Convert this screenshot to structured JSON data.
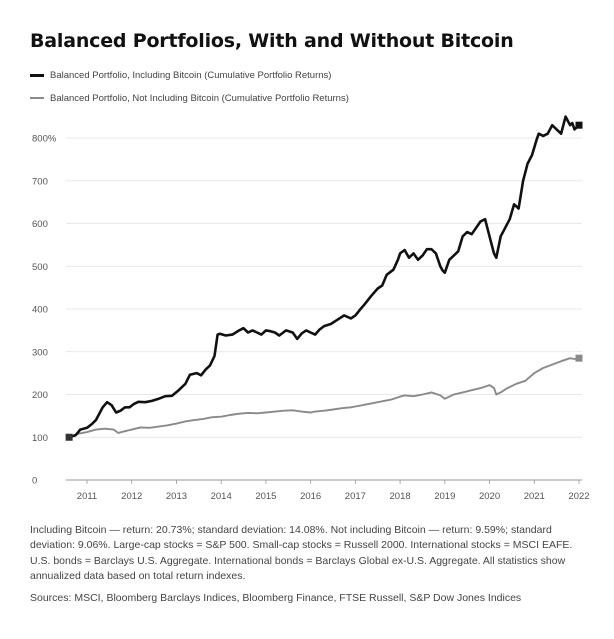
{
  "chart_data": {
    "type": "line",
    "title": "Balanced Portfolios, With and Without Bitcoin",
    "xlabel": "",
    "ylabel": "",
    "x_range": [
      2010.5,
      2022.0
    ],
    "ylim": [
      0,
      850
    ],
    "y_ticks": [
      0,
      100,
      200,
      300,
      400,
      500,
      600,
      700,
      800
    ],
    "y_tick_labels": [
      "0",
      "100",
      "200",
      "300",
      "400",
      "500",
      "600",
      "700",
      "800%"
    ],
    "x_ticks": [
      2011,
      2012,
      2013,
      2014,
      2015,
      2016,
      2017,
      2018,
      2019,
      2020,
      2021,
      2022
    ],
    "x_tick_labels": [
      "2011",
      "2012",
      "2013",
      "2014",
      "2015",
      "2016",
      "2017",
      "2018",
      "2019",
      "2020",
      "2021",
      "2022"
    ],
    "grid": "horizontal",
    "legend_position": "top-left",
    "series": [
      {
        "name": "Balanced Portfolio, Including Bitcoin (Cumulative Portfolio Returns)",
        "color": "#111111",
        "x": [
          2010.6,
          2010.75,
          2010.85,
          2011.0,
          2011.1,
          2011.2,
          2011.35,
          2011.45,
          2011.55,
          2011.65,
          2011.75,
          2011.85,
          2011.95,
          2012.05,
          2012.15,
          2012.3,
          2012.45,
          2012.6,
          2012.75,
          2012.9,
          2013.05,
          2013.2,
          2013.3,
          2013.45,
          2013.55,
          2013.65,
          2013.75,
          2013.85,
          2013.92,
          2013.97,
          2014.1,
          2014.25,
          2014.4,
          2014.5,
          2014.6,
          2014.7,
          2014.8,
          2014.9,
          2015.0,
          2015.1,
          2015.2,
          2015.3,
          2015.45,
          2015.6,
          2015.7,
          2015.8,
          2015.9,
          2016.0,
          2016.1,
          2016.2,
          2016.3,
          2016.45,
          2016.6,
          2016.75,
          2016.9,
          2017.0,
          2017.1,
          2017.2,
          2017.35,
          2017.5,
          2017.6,
          2017.7,
          2017.85,
          2017.95,
          2018.0,
          2018.1,
          2018.2,
          2018.3,
          2018.4,
          2018.5,
          2018.6,
          2018.7,
          2018.8,
          2018.9,
          2018.95,
          2019.0,
          2019.1,
          2019.2,
          2019.3,
          2019.4,
          2019.5,
          2019.6,
          2019.7,
          2019.8,
          2019.9,
          2020.0,
          2020.1,
          2020.15,
          2020.25,
          2020.35,
          2020.45,
          2020.55,
          2020.65,
          2020.75,
          2020.85,
          2020.95,
          2021.05,
          2021.1,
          2021.2,
          2021.3,
          2021.4,
          2021.5,
          2021.6,
          2021.7,
          2021.8,
          2021.85,
          2021.9,
          2022.0
        ],
        "values": [
          100,
          105,
          118,
          122,
          130,
          140,
          170,
          182,
          175,
          158,
          162,
          170,
          170,
          178,
          183,
          182,
          185,
          190,
          196,
          197,
          210,
          225,
          246,
          250,
          245,
          258,
          268,
          290,
          340,
          342,
          338,
          340,
          350,
          355,
          345,
          350,
          345,
          340,
          350,
          348,
          345,
          338,
          350,
          345,
          330,
          343,
          350,
          345,
          340,
          352,
          360,
          365,
          375,
          385,
          378,
          385,
          398,
          410,
          430,
          448,
          455,
          480,
          492,
          515,
          530,
          538,
          520,
          530,
          515,
          525,
          540,
          540,
          530,
          500,
          490,
          485,
          515,
          525,
          535,
          570,
          580,
          575,
          590,
          605,
          610,
          570,
          530,
          520,
          570,
          590,
          610,
          645,
          635,
          700,
          740,
          760,
          795,
          810,
          805,
          810,
          830,
          820,
          810,
          850,
          830,
          835,
          820,
          830
        ]
      },
      {
        "name": "Balanced Portfolio, Not Including Bitcoin (Cumulative Portfolio Returns)",
        "color": "#8a8a8a",
        "x": [
          2010.6,
          2010.8,
          2011.0,
          2011.2,
          2011.4,
          2011.6,
          2011.7,
          2011.8,
          2012.0,
          2012.2,
          2012.4,
          2012.6,
          2012.8,
          2013.0,
          2013.2,
          2013.4,
          2013.6,
          2013.8,
          2014.0,
          2014.2,
          2014.4,
          2014.6,
          2014.8,
          2015.0,
          2015.2,
          2015.4,
          2015.6,
          2015.8,
          2016.0,
          2016.1,
          2016.3,
          2016.5,
          2016.7,
          2016.9,
          2017.0,
          2017.2,
          2017.4,
          2017.6,
          2017.8,
          2018.0,
          2018.1,
          2018.3,
          2018.5,
          2018.7,
          2018.9,
          2019.0,
          2019.2,
          2019.4,
          2019.6,
          2019.8,
          2020.0,
          2020.1,
          2020.15,
          2020.25,
          2020.4,
          2020.6,
          2020.8,
          2021.0,
          2021.2,
          2021.4,
          2021.6,
          2021.8,
          2021.9,
          2022.0
        ],
        "values": [
          100,
          108,
          112,
          118,
          120,
          118,
          110,
          113,
          118,
          123,
          122,
          125,
          128,
          132,
          137,
          140,
          143,
          147,
          148,
          152,
          155,
          157,
          156,
          158,
          160,
          162,
          163,
          160,
          158,
          160,
          162,
          165,
          168,
          170,
          172,
          176,
          180,
          184,
          188,
          195,
          198,
          196,
          200,
          205,
          198,
          190,
          200,
          205,
          210,
          215,
          222,
          215,
          200,
          205,
          215,
          225,
          232,
          250,
          262,
          270,
          278,
          285,
          283,
          285
        ]
      }
    ]
  },
  "footnote": "Including Bitcoin — return: 20.73%; standard deviation: 14.08%. Not including Bitcoin — return: 9.59%; standard deviation: 9.06%. Large-cap stocks = S&P 500. Small-cap stocks = Russell 2000. International stocks = MSCI EAFE. U.S. bonds = Barclays U.S. Aggregate. International bonds = Barclays Global ex-U.S. Aggregate. All statistics show annualized data based on total return indexes.",
  "sources": "Sources: MSCI, Bloomberg Barclays Indices, Bloomberg Finance, FTSE Russell, S&P Dow Jones Indices"
}
